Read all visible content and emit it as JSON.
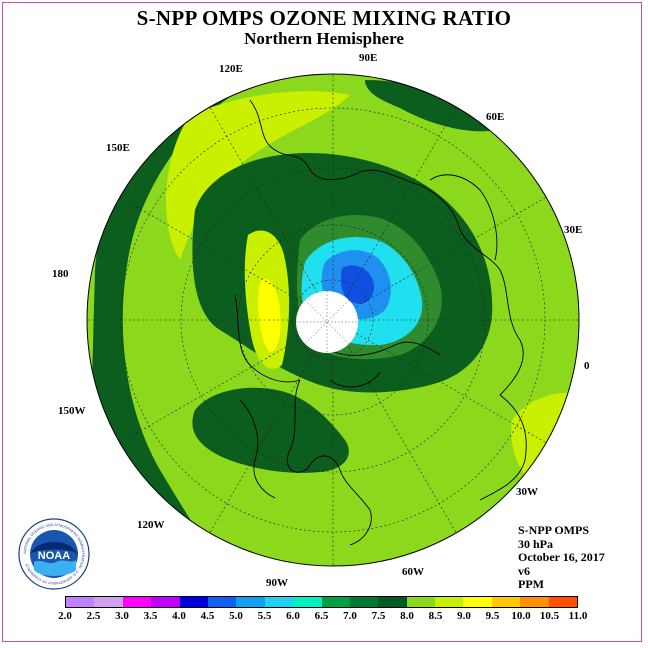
{
  "title": "S-NPP OMPS OZONE MIXING RATIO",
  "subtitle": "Northern Hemisphere",
  "longitude_labels": [
    "90E",
    "60E",
    "30E",
    "0",
    "30W",
    "60W",
    "90W",
    "120W",
    "150W",
    "180",
    "150E",
    "120E"
  ],
  "info": {
    "instrument": "S-NPP OMPS",
    "level": "30 hPa",
    "date": "October 16, 2017",
    "version": "v6",
    "units": "PPM"
  },
  "logo": {
    "text": "NOAA",
    "ring_text": "NATIONAL OCEANIC AND ATMOSPHERIC ADMINISTRATION · U.S. DEPARTMENT OF COMMERCE"
  },
  "colorbar": {
    "ticks": [
      "2.0",
      "2.5",
      "3.0",
      "3.5",
      "4.0",
      "4.5",
      "5.0",
      "5.5",
      "6.0",
      "6.5",
      "7.0",
      "7.5",
      "8.0",
      "8.5",
      "9.0",
      "9.5",
      "10.0",
      "10.5",
      "11.0"
    ],
    "colors": [
      "#c080ff",
      "#d0a0f0",
      "#ff00ff",
      "#c000ff",
      "#0000e0",
      "#1060f0",
      "#10a0f0",
      "#20d0f0",
      "#00f0c0",
      "#00a040",
      "#007a30",
      "#005c24",
      "#8cd81c",
      "#c8f000",
      "#ffff00",
      "#ffc800",
      "#ff9000",
      "#ff5000",
      "#ff0000",
      "#8b5a2b"
    ]
  },
  "colors": {
    "dark_green": "#0b5e1e",
    "mid_green": "#2e8b2e",
    "light_green": "#8cd81c",
    "yellow_green": "#c8f000",
    "yellow": "#ffff00",
    "cyan": "#20e0f0",
    "blue": "#2080f0",
    "navy": "#1040d0",
    "pole_mask": "#ffffff"
  }
}
